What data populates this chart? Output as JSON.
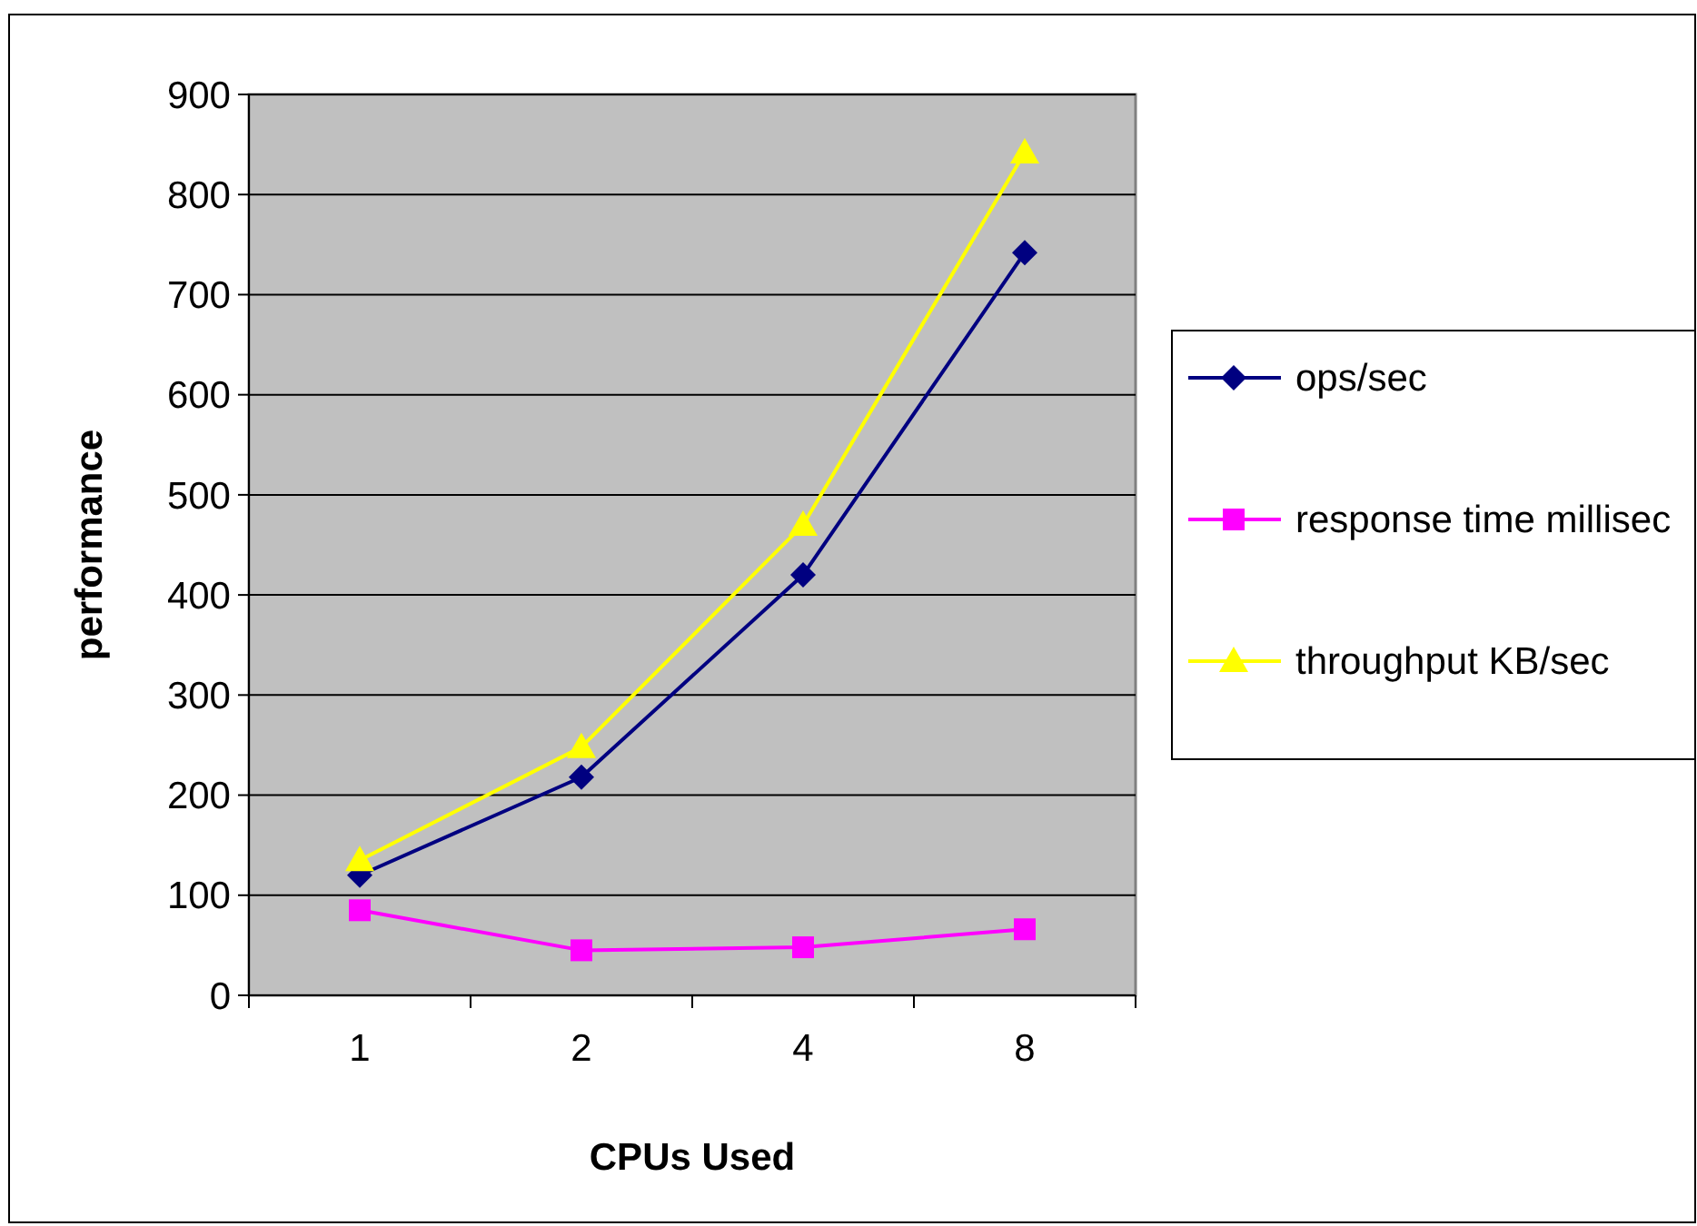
{
  "chart_data": {
    "type": "line",
    "xlabel": "CPUs Used",
    "ylabel": "performance",
    "categories": [
      "1",
      "2",
      "4",
      "8"
    ],
    "series": [
      {
        "name": "ops/sec",
        "color": "#000080",
        "marker": "diamond",
        "values": [
          120,
          218,
          420,
          742
        ]
      },
      {
        "name": "response time millisec",
        "color": "#ff00ff",
        "marker": "square",
        "values": [
          85,
          45,
          48,
          66
        ]
      },
      {
        "name": "throughput KB/sec",
        "color": "#ffff00",
        "marker": "triangle",
        "values": [
          135,
          248,
          470,
          842
        ]
      }
    ],
    "ylim": [
      0,
      900
    ],
    "yticks": [
      0,
      100,
      200,
      300,
      400,
      500,
      600,
      700,
      800,
      900
    ],
    "grid": "y",
    "legend": "right"
  }
}
